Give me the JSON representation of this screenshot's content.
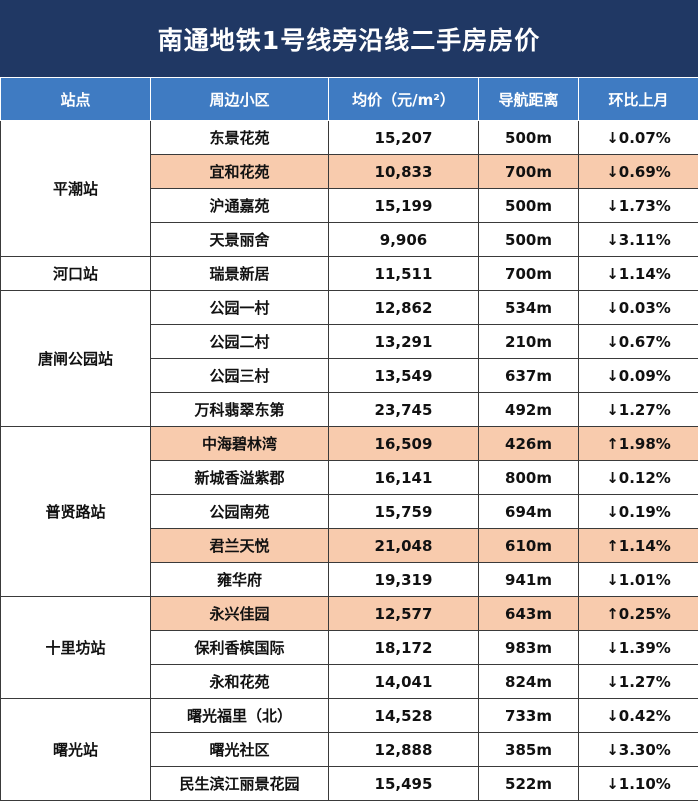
{
  "title": "南通地铁1号线旁沿线二手房房价",
  "headers": [
    "站点",
    "周边小区",
    "均价（元/m²）",
    "导航距离",
    "环比上月"
  ],
  "groups": [
    {
      "station": "平潮站",
      "rows": [
        {
          "community": "东景花苑",
          "price": "15,207",
          "distance": "500m",
          "change": "↓0.07%",
          "highlight": false
        },
        {
          "community": "宜和花苑",
          "price": "10,833",
          "distance": "700m",
          "change": "↓0.69%",
          "highlight": true
        },
        {
          "community": "沪通嘉苑",
          "price": "15,199",
          "distance": "500m",
          "change": "↓1.73%",
          "highlight": false
        },
        {
          "community": "天景丽舍",
          "price": "9,906",
          "distance": "500m",
          "change": "↓3.11%",
          "highlight": false
        }
      ]
    },
    {
      "station": "河口站",
      "rows": [
        {
          "community": "瑞景新居",
          "price": "11,511",
          "distance": "700m",
          "change": "↓1.14%",
          "highlight": false
        }
      ]
    },
    {
      "station": "唐闸公园站",
      "rows": [
        {
          "community": "公园一村",
          "price": "12,862",
          "distance": "534m",
          "change": "↓0.03%",
          "highlight": false
        },
        {
          "community": "公园二村",
          "price": "13,291",
          "distance": "210m",
          "change": "↓0.67%",
          "highlight": false
        },
        {
          "community": "公园三村",
          "price": "13,549",
          "distance": "637m",
          "change": "↓0.09%",
          "highlight": false
        },
        {
          "community": "万科翡翠东第",
          "price": "23,745",
          "distance": "492m",
          "change": "↓1.27%",
          "highlight": false
        }
      ]
    },
    {
      "station": "普贤路站",
      "rows": [
        {
          "community": "中海碧林湾",
          "price": "16,509",
          "distance": "426m",
          "change": "↑1.98%",
          "highlight": true
        },
        {
          "community": "新城香溢紫郡",
          "price": "16,141",
          "distance": "800m",
          "change": "↓0.12%",
          "highlight": false
        },
        {
          "community": "公园南苑",
          "price": "15,759",
          "distance": "694m",
          "change": "↓0.19%",
          "highlight": false
        },
        {
          "community": "君兰天悦",
          "price": "21,048",
          "distance": "610m",
          "change": "↑1.14%",
          "highlight": true
        },
        {
          "community": "雍华府",
          "price": "19,319",
          "distance": "941m",
          "change": "↓1.01%",
          "highlight": false
        }
      ]
    },
    {
      "station": "十里坊站",
      "rows": [
        {
          "community": "永兴佳园",
          "price": "12,577",
          "distance": "643m",
          "change": "↑0.25%",
          "highlight": true
        },
        {
          "community": "保利香槟国际",
          "price": "18,172",
          "distance": "983m",
          "change": "↓1.39%",
          "highlight": false
        },
        {
          "community": "永和花苑",
          "price": "14,041",
          "distance": "824m",
          "change": "↓1.27%",
          "highlight": false
        }
      ]
    },
    {
      "station": "曙光站",
      "rows": [
        {
          "community": "曙光福里（北）",
          "price": "14,528",
          "distance": "733m",
          "change": "↓0.42%",
          "highlight": false
        },
        {
          "community": "曙光社区",
          "price": "12,888",
          "distance": "385m",
          "change": "↓3.30%",
          "highlight": false
        },
        {
          "community": "民生滨江丽景花园",
          "price": "15,495",
          "distance": "522m",
          "change": "↓1.10%",
          "highlight": false
        }
      ]
    }
  ],
  "colors": {
    "title_bg": "#203864",
    "header_bg": "#3f7bc2",
    "highlight_bg": "#f8cbad"
  }
}
